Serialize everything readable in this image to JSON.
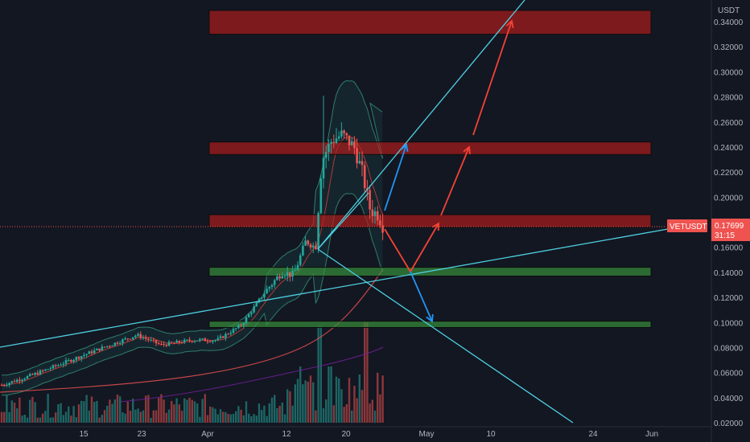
{
  "chart_data": {
    "type": "candlestick",
    "symbol": "VETUSDT",
    "currency": "USDT",
    "last_price": "0.17699",
    "countdown": "31:15",
    "y_axis": {
      "min": 0.02,
      "max": 0.36,
      "ticks": [
        "0.34000",
        "0.32000",
        "0.30000",
        "0.28000",
        "0.26000",
        "0.24000",
        "0.22000",
        "0.20000",
        "0.18000",
        "0.16000",
        "0.14000",
        "0.12000",
        "0.10000",
        "0.08000",
        "0.06000",
        "0.04000",
        "0.02000"
      ]
    },
    "x_axis": {
      "ticks": [
        "15",
        "23",
        "Apr",
        "12",
        "20",
        "May",
        "10",
        "24",
        "Jun"
      ]
    },
    "zones": [
      {
        "type": "resistance",
        "low": 0.33,
        "high": 0.349
      },
      {
        "type": "resistance",
        "low": 0.234,
        "high": 0.244
      },
      {
        "type": "resistance",
        "low": 0.176,
        "high": 0.186
      },
      {
        "type": "support",
        "low": 0.137,
        "high": 0.144
      },
      {
        "type": "support",
        "low": 0.096,
        "high": 0.101
      }
    ],
    "colors": {
      "background": "#131722",
      "up": "#26a69a",
      "down": "#ef5350",
      "trendline": "#4dd0e1",
      "projection": "#f44336",
      "alt_projection": "#2196f3",
      "last_price_line": "#ef5350"
    }
  }
}
